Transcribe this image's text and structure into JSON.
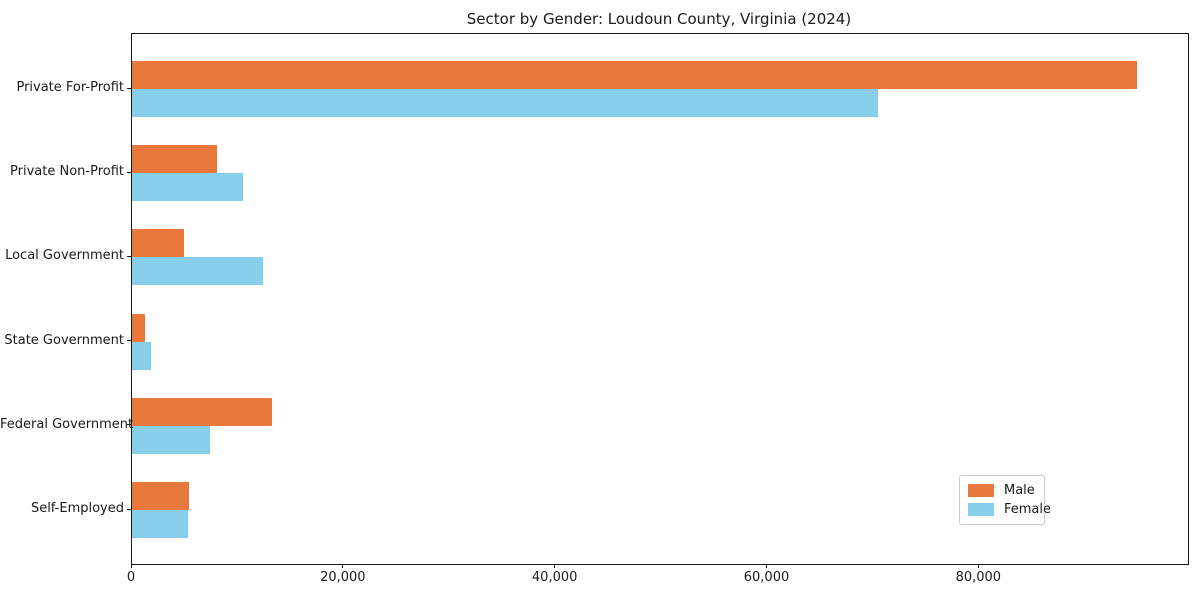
{
  "chart_data": {
    "type": "bar",
    "orientation": "horizontal",
    "title": "Sector by Gender: Loudoun County, Virginia (2024)",
    "categories": [
      "Private For-Profit",
      "Private Non-Profit",
      "Local Government",
      "State Government",
      "Federal Government",
      "Self-Employed"
    ],
    "series": [
      {
        "name": "Male",
        "color": "#e8783c",
        "values": [
          94900,
          8000,
          4900,
          1200,
          13200,
          5400
        ]
      },
      {
        "name": "Female",
        "color": "#87ceeb",
        "values": [
          70400,
          10500,
          12400,
          1800,
          7400,
          5300
        ]
      }
    ],
    "xlabel": "",
    "ylabel": "",
    "xlim": [
      0,
      99700
    ],
    "xticks": [
      {
        "value": 0,
        "label": "0"
      },
      {
        "value": 20000,
        "label": "20,000"
      },
      {
        "value": 40000,
        "label": "40,000"
      },
      {
        "value": 60000,
        "label": "60,000"
      },
      {
        "value": 80000,
        "label": "80,000"
      }
    ],
    "grid": false,
    "legend": {
      "position": "lower-right",
      "entries": [
        "Male",
        "Female"
      ]
    }
  }
}
